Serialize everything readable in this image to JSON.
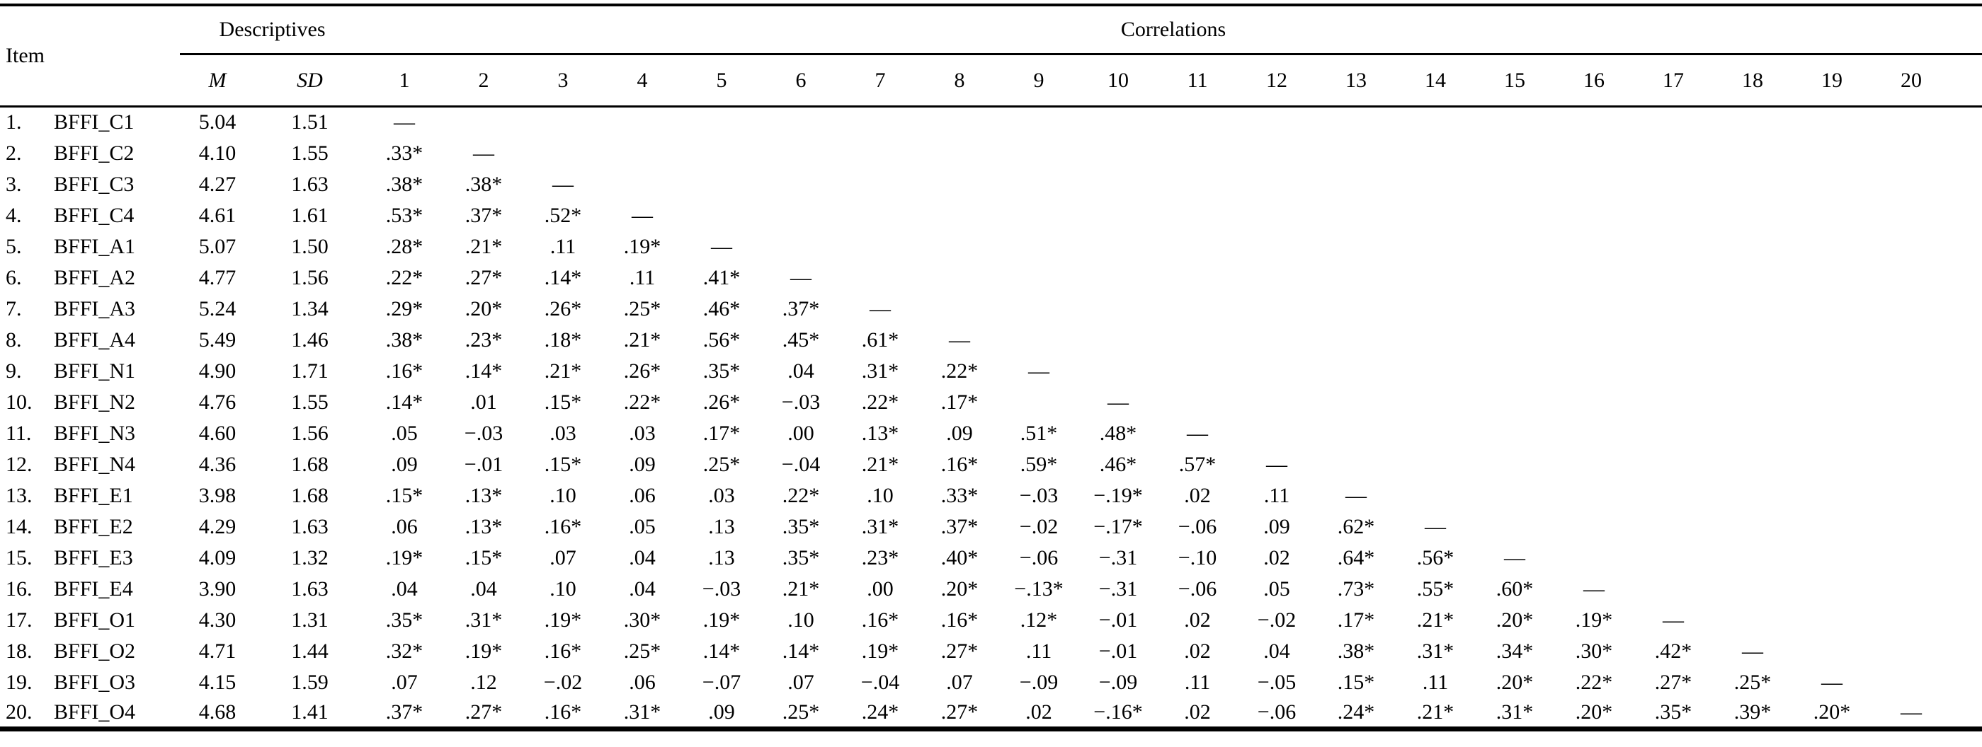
{
  "table": {
    "item_header": "Item",
    "descriptives_label": "Descriptives",
    "correlations_label": "Correlations",
    "m_label": "M",
    "sd_label": "SD",
    "corr_headers": [
      "1",
      "2",
      "3",
      "4",
      "5",
      "6",
      "7",
      "8",
      "9",
      "10",
      "11",
      "12",
      "13",
      "14",
      "15",
      "16",
      "17",
      "18",
      "19",
      "20"
    ],
    "dash": "—",
    "rows": [
      {
        "num": "1.",
        "item": "BFFI_C1",
        "m": "5.04",
        "sd": "1.51",
        "r": [
          "—"
        ]
      },
      {
        "num": "2.",
        "item": "BFFI_C2",
        "m": "4.10",
        "sd": "1.55",
        "r": [
          ".33*",
          "—"
        ]
      },
      {
        "num": "3.",
        "item": "BFFI_C3",
        "m": "4.27",
        "sd": "1.63",
        "r": [
          ".38*",
          ".38*",
          "—"
        ]
      },
      {
        "num": "4.",
        "item": "BFFI_C4",
        "m": "4.61",
        "sd": "1.61",
        "r": [
          ".53*",
          ".37*",
          ".52*",
          "—"
        ]
      },
      {
        "num": "5.",
        "item": "BFFI_A1",
        "m": "5.07",
        "sd": "1.50",
        "r": [
          ".28*",
          ".21*",
          ".11",
          ".19*",
          "—"
        ]
      },
      {
        "num": "6.",
        "item": "BFFI_A2",
        "m": "4.77",
        "sd": "1.56",
        "r": [
          ".22*",
          ".27*",
          ".14*",
          ".11",
          ".41*",
          "—"
        ]
      },
      {
        "num": "7.",
        "item": "BFFI_A3",
        "m": "5.24",
        "sd": "1.34",
        "r": [
          ".29*",
          ".20*",
          ".26*",
          ".25*",
          ".46*",
          ".37*",
          "—"
        ]
      },
      {
        "num": "8.",
        "item": "BFFI_A4",
        "m": "5.49",
        "sd": "1.46",
        "r": [
          ".38*",
          ".23*",
          ".18*",
          ".21*",
          ".56*",
          ".45*",
          ".61*",
          "—"
        ]
      },
      {
        "num": "9.",
        "item": "BFFI_N1",
        "m": "4.90",
        "sd": "1.71",
        "r": [
          ".16*",
          ".14*",
          ".21*",
          ".26*",
          ".35*",
          ".04",
          ".31*",
          ".22*",
          "—"
        ]
      },
      {
        "num": "10.",
        "item": "BFFI_N2",
        "m": "4.76",
        "sd": "1.55",
        "r": [
          ".14*",
          ".01",
          ".15*",
          ".22*",
          ".26*",
          "−.03",
          ".22*",
          ".17*",
          "",
          "—"
        ]
      },
      {
        "num": "11.",
        "item": "BFFI_N3",
        "m": "4.60",
        "sd": "1.56",
        "r": [
          ".05",
          "−.03",
          ".03",
          ".03",
          ".17*",
          ".00",
          ".13*",
          ".09",
          ".51*",
          ".48*",
          "—"
        ]
      },
      {
        "num": "12.",
        "item": "BFFI_N4",
        "m": "4.36",
        "sd": "1.68",
        "r": [
          ".09",
          "−.01",
          ".15*",
          ".09",
          ".25*",
          "−.04",
          ".21*",
          ".16*",
          ".59*",
          ".46*",
          ".57*",
          "—"
        ]
      },
      {
        "num": "13.",
        "item": "BFFI_E1",
        "m": "3.98",
        "sd": "1.68",
        "r": [
          ".15*",
          ".13*",
          ".10",
          ".06",
          ".03",
          ".22*",
          ".10",
          ".33*",
          "−.03",
          "−.19*",
          ".02",
          ".11",
          "—"
        ]
      },
      {
        "num": "14.",
        "item": "BFFI_E2",
        "m": "4.29",
        "sd": "1.63",
        "r": [
          ".06",
          ".13*",
          ".16*",
          ".05",
          ".13",
          ".35*",
          ".31*",
          ".37*",
          "−.02",
          "−.17*",
          "−.06",
          ".09",
          ".62*",
          "—"
        ]
      },
      {
        "num": "15.",
        "item": "BFFI_E3",
        "m": "4.09",
        "sd": "1.32",
        "r": [
          ".19*",
          ".15*",
          ".07",
          ".04",
          ".13",
          ".35*",
          ".23*",
          ".40*",
          "−.06",
          "−.31",
          "−.10",
          ".02",
          ".64*",
          ".56*",
          "—"
        ]
      },
      {
        "num": "16.",
        "item": "BFFI_E4",
        "m": "3.90",
        "sd": "1.63",
        "r": [
          ".04",
          ".04",
          ".10",
          ".04",
          "−.03",
          ".21*",
          ".00",
          ".20*",
          "−.13*",
          "−.31",
          "−.06",
          ".05",
          ".73*",
          ".55*",
          ".60*",
          "—"
        ]
      },
      {
        "num": "17.",
        "item": "BFFI_O1",
        "m": "4.30",
        "sd": "1.31",
        "r": [
          ".35*",
          ".31*",
          ".19*",
          ".30*",
          ".19*",
          ".10",
          ".16*",
          ".16*",
          ".12*",
          "−.01",
          ".02",
          "−.02",
          ".17*",
          ".21*",
          ".20*",
          ".19*",
          "—"
        ]
      },
      {
        "num": "18.",
        "item": "BFFI_O2",
        "m": "4.71",
        "sd": "1.44",
        "r": [
          ".32*",
          ".19*",
          ".16*",
          ".25*",
          ".14*",
          ".14*",
          ".19*",
          ".27*",
          ".11",
          "−.01",
          ".02",
          ".04",
          ".38*",
          ".31*",
          ".34*",
          ".30*",
          ".42*",
          "—"
        ]
      },
      {
        "num": "19.",
        "item": "BFFI_O3",
        "m": "4.15",
        "sd": "1.59",
        "r": [
          ".07",
          ".12",
          "−.02",
          ".06",
          "−.07",
          ".07",
          "−.04",
          ".07",
          "−.09",
          "−.09",
          ".11",
          "−.05",
          ".15*",
          ".11",
          ".20*",
          ".22*",
          ".27*",
          ".25*",
          "—"
        ]
      },
      {
        "num": "20.",
        "item": "BFFI_O4",
        "m": "4.68",
        "sd": "1.41",
        "r": [
          ".37*",
          ".27*",
          ".16*",
          ".31*",
          ".09",
          ".25*",
          ".24*",
          ".27*",
          ".02",
          "−.16*",
          ".02",
          "−.06",
          ".24*",
          ".21*",
          ".31*",
          ".20*",
          ".35*",
          ".39*",
          ".20*",
          "—"
        ]
      }
    ]
  }
}
